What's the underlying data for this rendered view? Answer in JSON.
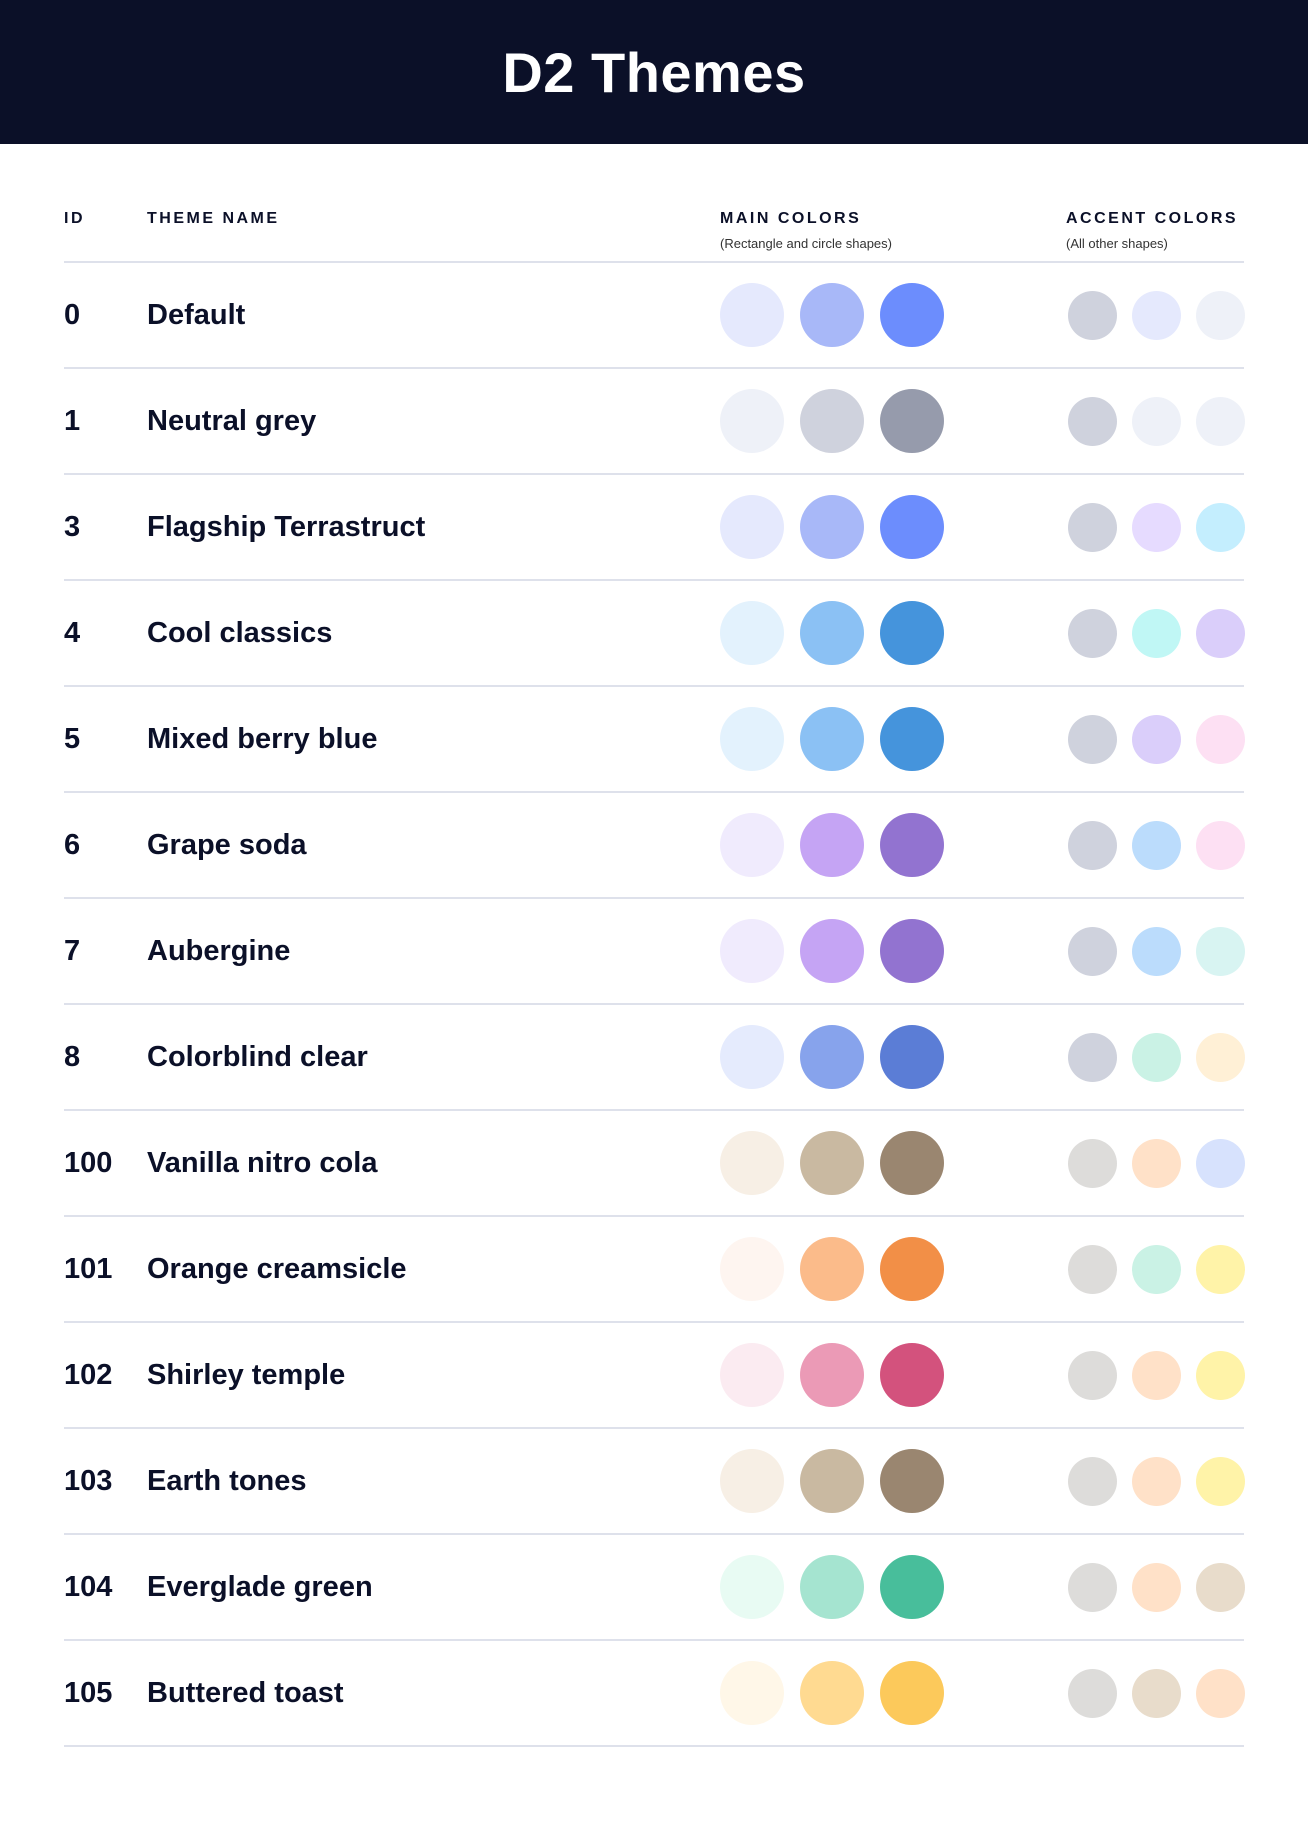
{
  "title": "D2 Themes",
  "columns": {
    "id": "ID",
    "name": "THEME NAME",
    "main": "MAIN COLORS",
    "main_sub": "(Rectangle and circle shapes)",
    "accent": "ACCENT COLORS",
    "accent_sub": "(All other shapes)"
  },
  "themes": [
    {
      "id": "0",
      "name": "Default",
      "main": [
        "#E5E9FD",
        "#A8B8F8",
        "#6C8DFD"
      ],
      "accent": [
        "#CFD2DD",
        "#E5E9FD",
        "#EEF1F8"
      ]
    },
    {
      "id": "1",
      "name": "Neutral grey",
      "main": [
        "#EEF1F8",
        "#CFD2DD",
        "#969BAC"
      ],
      "accent": [
        "#CFD2DD",
        "#EEF1F8",
        "#EEF1F8"
      ]
    },
    {
      "id": "3",
      "name": "Flagship Terrastruct",
      "main": [
        "#E5E9FD",
        "#A8B8F8",
        "#6C8DFD"
      ],
      "accent": [
        "#CFD2DD",
        "#E6DBFF",
        "#C4EEFE"
      ]
    },
    {
      "id": "4",
      "name": "Cool classics",
      "main": [
        "#E3F2FD",
        "#8BC1F4",
        "#4594DC"
      ],
      "accent": [
        "#CFD2DD",
        "#C0F7F5",
        "#DACEFA"
      ]
    },
    {
      "id": "5",
      "name": "Mixed berry blue",
      "main": [
        "#E3F2FD",
        "#8BC1F4",
        "#4594DC"
      ],
      "accent": [
        "#CFD2DD",
        "#DACEFA",
        "#FDE0F3"
      ]
    },
    {
      "id": "6",
      "name": "Grape soda",
      "main": [
        "#F0EBFD",
        "#C5A4F4",
        "#9273D0"
      ],
      "accent": [
        "#CFD2DD",
        "#BBDCFC",
        "#FDE0F3"
      ]
    },
    {
      "id": "7",
      "name": "Aubergine",
      "main": [
        "#F0EBFD",
        "#C5A4F4",
        "#9273D0"
      ],
      "accent": [
        "#CFD2DD",
        "#BBDCFC",
        "#D8F4F2"
      ]
    },
    {
      "id": "8",
      "name": "Colorblind clear",
      "main": [
        "#E5EBFD",
        "#87A3EC",
        "#5B7DD6"
      ],
      "accent": [
        "#CFD2DD",
        "#CAF2E5",
        "#FFF0D6"
      ]
    },
    {
      "id": "100",
      "name": "Vanilla nitro cola",
      "main": [
        "#F7EFE5",
        "#C9B9A1",
        "#9A8670"
      ],
      "accent": [
        "#DDDCDA",
        "#FFE1C8",
        "#D7E2FD"
      ]
    },
    {
      "id": "101",
      "name": "Orange creamsicle",
      "main": [
        "#FEF5F0",
        "#FBBB8A",
        "#F28F47"
      ],
      "accent": [
        "#DDDCDA",
        "#CAF2E5",
        "#FFF3A8"
      ]
    },
    {
      "id": "102",
      "name": "Shirley temple",
      "main": [
        "#FBEBF1",
        "#EB9AB6",
        "#D3527D"
      ],
      "accent": [
        "#DDDCDA",
        "#FFE1C8",
        "#FFF3A8"
      ]
    },
    {
      "id": "103",
      "name": "Earth tones",
      "main": [
        "#F7EFE5",
        "#C9B9A1",
        "#9A8670"
      ],
      "accent": [
        "#DDDCDA",
        "#FFE1C8",
        "#FFF3A8"
      ]
    },
    {
      "id": "104",
      "name": "Everglade green",
      "main": [
        "#E8FBF3",
        "#A5E4D0",
        "#48BE9B"
      ],
      "accent": [
        "#DDDCDA",
        "#FFE1C8",
        "#E8DCCB"
      ]
    },
    {
      "id": "105",
      "name": "Buttered toast",
      "main": [
        "#FFF7E8",
        "#FFDA91",
        "#FCC95B"
      ],
      "accent": [
        "#DDDCDA",
        "#E8DCCB",
        "#FFE1C8"
      ]
    }
  ]
}
